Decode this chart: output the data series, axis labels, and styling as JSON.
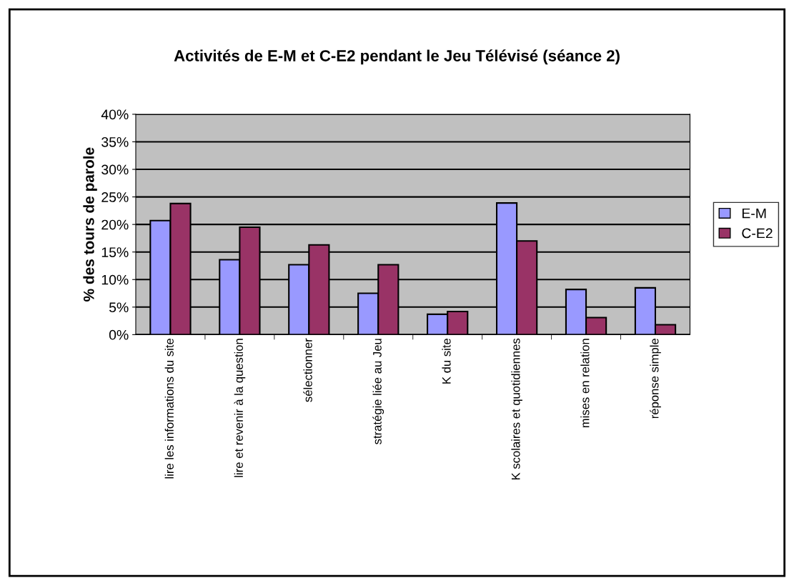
{
  "chart_data": {
    "type": "bar",
    "title": "Activités de E-M et C-E2 pendant le Jeu Télévisé (séance 2)",
    "ylabel": "% des tours de parole",
    "categories": [
      "lire les informations du site",
      "lire et revenir à la question",
      "sélectionner",
      "stratégie liée au Jeu",
      "K du site",
      "K scolaires et quotidiennes",
      "mises en relation",
      "réponse simple"
    ],
    "series": [
      {
        "name": "E-M",
        "color": "#9999ff",
        "values": [
          20.7,
          13.6,
          12.7,
          7.5,
          3.7,
          23.9,
          8.2,
          8.5
        ]
      },
      {
        "name": "C-E2",
        "color": "#993366",
        "values": [
          23.8,
          19.5,
          16.3,
          12.7,
          4.2,
          17.0,
          3.1,
          1.8
        ]
      }
    ],
    "ylim": [
      0,
      40
    ],
    "yticks": [
      {
        "value": 0,
        "label": "0%"
      },
      {
        "value": 5,
        "label": "5%"
      },
      {
        "value": 10,
        "label": "10%"
      },
      {
        "value": 15,
        "label": "15%"
      },
      {
        "value": 20,
        "label": "20%"
      },
      {
        "value": 25,
        "label": "25%"
      },
      {
        "value": 30,
        "label": "30%"
      },
      {
        "value": 35,
        "label": "35%"
      },
      {
        "value": 40,
        "label": "40%"
      }
    ],
    "grid": "y",
    "legend": "right"
  }
}
